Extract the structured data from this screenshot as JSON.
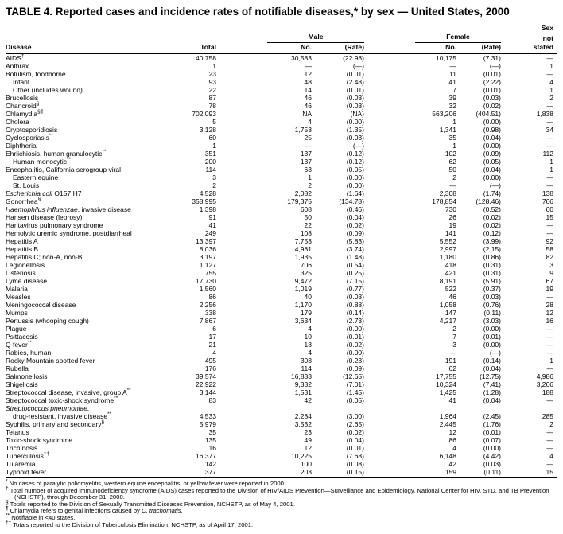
{
  "title": "TABLE 4. Reported cases and incidence rates of notifiable diseases,* by sex — United States, 2000",
  "table": {
    "col_headers": {
      "disease": "Disease",
      "total": "Total",
      "male": "Male",
      "female": "Female",
      "no": "No.",
      "rate": "(Rate)",
      "sex": "Sex",
      "not": "not",
      "stated": "stated"
    },
    "rows": [
      {
        "italic": "",
        "name": "AIDS",
        "sup": "†",
        "indent": 0,
        "total": "40,758",
        "male_no": "30,583",
        "male_rate": "(22.98)",
        "female_no": "10,175",
        "female_rate": "(7.31)",
        "not_stated": "—"
      },
      {
        "italic": "",
        "name": "Anthrax",
        "sup": "",
        "indent": 0,
        "total": "1",
        "male_no": "—",
        "male_rate": "(—)",
        "female_no": "—",
        "female_rate": "(—)",
        "not_stated": "1"
      },
      {
        "italic": "",
        "name": "Botulism, foodborne",
        "sup": "",
        "indent": 0,
        "total": "23",
        "male_no": "12",
        "male_rate": "(0.01)",
        "female_no": "11",
        "female_rate": "(0.01)",
        "not_stated": "—"
      },
      {
        "italic": "",
        "name": "Infant",
        "sup": "",
        "indent": 1,
        "total": "93",
        "male_no": "48",
        "male_rate": "(2.48)",
        "female_no": "41",
        "female_rate": "(2.22)",
        "not_stated": "4"
      },
      {
        "italic": "",
        "name": "Other (includes wound)",
        "sup": "",
        "indent": 1,
        "total": "22",
        "male_no": "14",
        "male_rate": "(0.01)",
        "female_no": "7",
        "female_rate": "(0.01)",
        "not_stated": "1"
      },
      {
        "italic": "",
        "name": "Brucellosis",
        "sup": "",
        "indent": 0,
        "total": "87",
        "male_no": "46",
        "male_rate": "(0.03)",
        "female_no": "39",
        "female_rate": "(0.03)",
        "not_stated": "2"
      },
      {
        "italic": "",
        "name": "Chancroid",
        "sup": "§",
        "indent": 0,
        "total": "78",
        "male_no": "46",
        "male_rate": "(0.03)",
        "female_no": "32",
        "female_rate": "(0.02)",
        "not_stated": "—"
      },
      {
        "italic": "",
        "name": "Chlamydia",
        "sup": "§¶",
        "indent": 0,
        "total": "702,093",
        "male_no": "NA",
        "male_rate": "(NA)",
        "female_no": "563,206",
        "female_rate": "(404.51)",
        "not_stated": "1,838"
      },
      {
        "italic": "",
        "name": "Cholera",
        "sup": "",
        "indent": 0,
        "total": "5",
        "male_no": "4",
        "male_rate": "(0.00)",
        "female_no": "1",
        "female_rate": "(0.00)",
        "not_stated": "—"
      },
      {
        "italic": "",
        "name": "Cryptosporidiosis",
        "sup": "",
        "indent": 0,
        "total": "3,128",
        "male_no": "1,753",
        "male_rate": "(1.35)",
        "female_no": "1,341",
        "female_rate": "(0.98)",
        "not_stated": "34"
      },
      {
        "italic": "",
        "name": "Cyclosporiasis",
        "sup": "**",
        "indent": 0,
        "total": "60",
        "male_no": "25",
        "male_rate": "(0.03)",
        "female_no": "35",
        "female_rate": "(0.04)",
        "not_stated": "—"
      },
      {
        "italic": "",
        "name": "Diphtheria",
        "sup": "",
        "indent": 0,
        "total": "1",
        "male_no": "—",
        "male_rate": "(—)",
        "female_no": "1",
        "female_rate": "(0.00)",
        "not_stated": "—"
      },
      {
        "italic": "",
        "name": "Ehrlichiosis, human granulocytic",
        "sup": "**",
        "indent": 0,
        "total": "351",
        "male_no": "137",
        "male_rate": "(0.12)",
        "female_no": "102",
        "female_rate": "(0.09)",
        "not_stated": "112"
      },
      {
        "italic": "",
        "name": "Human monocytic",
        "sup": "**",
        "indent": 1,
        "total": "200",
        "male_no": "137",
        "male_rate": "(0.12)",
        "female_no": "62",
        "female_rate": "(0.05)",
        "not_stated": "1"
      },
      {
        "italic": "",
        "name": "Encephalitis, California serogroup viral",
        "sup": "",
        "indent": 0,
        "total": "114",
        "male_no": "63",
        "male_rate": "(0.05)",
        "female_no": "50",
        "female_rate": "(0.04)",
        "not_stated": "1"
      },
      {
        "italic": "",
        "name": "Eastern equine",
        "sup": "",
        "indent": 1,
        "total": "3",
        "male_no": "1",
        "male_rate": "(0.00)",
        "female_no": "2",
        "female_rate": "(0.00)",
        "not_stated": "—"
      },
      {
        "italic": "",
        "name": "St. Louis",
        "sup": "",
        "indent": 1,
        "total": "2",
        "male_no": "2",
        "male_rate": "(0.00)",
        "female_no": "—",
        "female_rate": "(—)",
        "not_stated": "—"
      },
      {
        "italic": "Escherichia coli",
        "name": " O157:H7",
        "sup": "",
        "indent": 0,
        "total": "4,528",
        "male_no": "2,082",
        "male_rate": "(1.64)",
        "female_no": "2,308",
        "female_rate": "(1.74)",
        "not_stated": "138"
      },
      {
        "italic": "",
        "name": "Gonorrhea",
        "sup": "§",
        "indent": 0,
        "total": "358,995",
        "male_no": "179,375",
        "male_rate": "(134.78)",
        "female_no": "178,854",
        "female_rate": "(128.46)",
        "not_stated": "766"
      },
      {
        "italic": "Haemophilus influenzae",
        "name": ", invasive disease",
        "sup": "",
        "indent": 0,
        "total": "1,398",
        "male_no": "608",
        "male_rate": "(0.46)",
        "female_no": "730",
        "female_rate": "(0.52)",
        "not_stated": "60"
      },
      {
        "italic": "",
        "name": "Hansen disease (leprosy)",
        "sup": "",
        "indent": 0,
        "total": "91",
        "male_no": "50",
        "male_rate": "(0.04)",
        "female_no": "26",
        "female_rate": "(0.02)",
        "not_stated": "15"
      },
      {
        "italic": "",
        "name": "Hantavirus pulmonary syndrome",
        "sup": "",
        "indent": 0,
        "total": "41",
        "male_no": "22",
        "male_rate": "(0.02)",
        "female_no": "19",
        "female_rate": "(0.02)",
        "not_stated": "—"
      },
      {
        "italic": "",
        "name": "Hemolytic uremic syndrome, postdiarrheal",
        "sup": "",
        "indent": 0,
        "total": "249",
        "male_no": "108",
        "male_rate": "(0.09)",
        "female_no": "141",
        "female_rate": "(0.12)",
        "not_stated": "—"
      },
      {
        "italic": "",
        "name": "Hepatitis A",
        "sup": "",
        "indent": 0,
        "total": "13,397",
        "male_no": "7,753",
        "male_rate": "(5.83)",
        "female_no": "5,552",
        "female_rate": "(3.99)",
        "not_stated": "92"
      },
      {
        "italic": "",
        "name": "Hepatitis B",
        "sup": "",
        "indent": 0,
        "total": "8,036",
        "male_no": "4,981",
        "male_rate": "(3.74)",
        "female_no": "2,997",
        "female_rate": "(2.15)",
        "not_stated": "58"
      },
      {
        "italic": "",
        "name": "Hepatitis C; non-A, non-B",
        "sup": "",
        "indent": 0,
        "total": "3,197",
        "male_no": "1,935",
        "male_rate": "(1.48)",
        "female_no": "1,180",
        "female_rate": "(0.86)",
        "not_stated": "82"
      },
      {
        "italic": "",
        "name": "Legionellosis",
        "sup": "",
        "indent": 0,
        "total": "1,127",
        "male_no": "706",
        "male_rate": "(0.54)",
        "female_no": "418",
        "female_rate": "(0.31)",
        "not_stated": "3"
      },
      {
        "italic": "",
        "name": "Listeriosis",
        "sup": "",
        "indent": 0,
        "total": "755",
        "male_no": "325",
        "male_rate": "(0.25)",
        "female_no": "421",
        "female_rate": "(0.31)",
        "not_stated": "9"
      },
      {
        "italic": "",
        "name": "Lyme disease",
        "sup": "",
        "indent": 0,
        "total": "17,730",
        "male_no": "9,472",
        "male_rate": "(7.15)",
        "female_no": "8,191",
        "female_rate": "(5.91)",
        "not_stated": "67"
      },
      {
        "italic": "",
        "name": "Malaria",
        "sup": "",
        "indent": 0,
        "total": "1,560",
        "male_no": "1,019",
        "male_rate": "(0.77)",
        "female_no": "522",
        "female_rate": "(0.37)",
        "not_stated": "19"
      },
      {
        "italic": "",
        "name": "Measles",
        "sup": "",
        "indent": 0,
        "total": "86",
        "male_no": "40",
        "male_rate": "(0.03)",
        "female_no": "46",
        "female_rate": "(0.03)",
        "not_stated": "—"
      },
      {
        "italic": "",
        "name": "Meningococcal disease",
        "sup": "",
        "indent": 0,
        "total": "2,256",
        "male_no": "1,170",
        "male_rate": "(0.88)",
        "female_no": "1,058",
        "female_rate": "(0.76)",
        "not_stated": "28"
      },
      {
        "italic": "",
        "name": "Mumps",
        "sup": "",
        "indent": 0,
        "total": "338",
        "male_no": "179",
        "male_rate": "(0.14)",
        "female_no": "147",
        "female_rate": "(0.11)",
        "not_stated": "12"
      },
      {
        "italic": "",
        "name": "Pertussis (whooping cough)",
        "sup": "",
        "indent": 0,
        "total": "7,867",
        "male_no": "3,634",
        "male_rate": "(2.73)",
        "female_no": "4,217",
        "female_rate": "(3.03)",
        "not_stated": "16"
      },
      {
        "italic": "",
        "name": "Plague",
        "sup": "",
        "indent": 0,
        "total": "6",
        "male_no": "4",
        "male_rate": "(0.00)",
        "female_no": "2",
        "female_rate": "(0.00)",
        "not_stated": "—"
      },
      {
        "italic": "",
        "name": "Psittacosis",
        "sup": "",
        "indent": 0,
        "total": "17",
        "male_no": "10",
        "male_rate": "(0.01)",
        "female_no": "7",
        "female_rate": "(0.01)",
        "not_stated": "—"
      },
      {
        "italic": "",
        "name": "Q fever",
        "sup": "**",
        "indent": 0,
        "total": "21",
        "male_no": "18",
        "male_rate": "(0.02)",
        "female_no": "3",
        "female_rate": "(0.00)",
        "not_stated": "—"
      },
      {
        "italic": "",
        "name": "Rabies, human",
        "sup": "",
        "indent": 0,
        "total": "4",
        "male_no": "4",
        "male_rate": "(0.00)",
        "female_no": "—",
        "female_rate": "(—)",
        "not_stated": "—"
      },
      {
        "italic": "",
        "name": "Rocky Mountain spotted fever",
        "sup": "",
        "indent": 0,
        "total": "495",
        "male_no": "303",
        "male_rate": "(0.23)",
        "female_no": "191",
        "female_rate": "(0.14)",
        "not_stated": "1"
      },
      {
        "italic": "",
        "name": "Rubella",
        "sup": "",
        "indent": 0,
        "total": "176",
        "male_no": "114",
        "male_rate": "(0.09)",
        "female_no": "62",
        "female_rate": "(0.04)",
        "not_stated": "—"
      },
      {
        "italic": "",
        "name": "Salmonellosis",
        "sup": "",
        "indent": 0,
        "total": "39,574",
        "male_no": "16,833",
        "male_rate": "(12.65)",
        "female_no": "17,755",
        "female_rate": "(12.75)",
        "not_stated": "4,986"
      },
      {
        "italic": "",
        "name": "Shigellosis",
        "sup": "",
        "indent": 0,
        "total": "22,922",
        "male_no": "9,332",
        "male_rate": "(7.01)",
        "female_no": "10,324",
        "female_rate": "(7.41)",
        "not_stated": "3,266"
      },
      {
        "italic": "",
        "name": "Streptococcal disease, invasive, group A",
        "sup": "**",
        "indent": 0,
        "total": "3,144",
        "male_no": "1,531",
        "male_rate": "(1.45)",
        "female_no": "1,425",
        "female_rate": "(1.28)",
        "not_stated": "188"
      },
      {
        "italic": "",
        "name": "Streptococcal toxic-shock syndrome",
        "sup": "**",
        "indent": 0,
        "total": "83",
        "male_no": "42",
        "male_rate": "(0.05)",
        "female_no": "41",
        "female_rate": "(0.04)",
        "not_stated": "—"
      },
      {
        "italic": "Streptococcus pneumoniae,",
        "name": "",
        "sup": "",
        "indent": 0,
        "total": "",
        "male_no": "",
        "male_rate": "",
        "female_no": "",
        "female_rate": "",
        "not_stated": ""
      },
      {
        "italic": "",
        "name": "drug-resistant, invasive disease",
        "sup": "**",
        "indent": 1,
        "total": "4,533",
        "male_no": "2,284",
        "male_rate": "(3.00)",
        "female_no": "1,964",
        "female_rate": "(2.45)",
        "not_stated": "285"
      },
      {
        "italic": "",
        "name": "Syphilis, primary and secondary",
        "sup": "§",
        "indent": 0,
        "total": "5,979",
        "male_no": "3,532",
        "male_rate": "(2.65)",
        "female_no": "2,445",
        "female_rate": "(1.76)",
        "not_stated": "2"
      },
      {
        "italic": "",
        "name": "Tetanus",
        "sup": "",
        "indent": 0,
        "total": "35",
        "male_no": "23",
        "male_rate": "(0.02)",
        "female_no": "12",
        "female_rate": "(0.01)",
        "not_stated": "—"
      },
      {
        "italic": "",
        "name": "Toxic-shock syndrome",
        "sup": "",
        "indent": 0,
        "total": "135",
        "male_no": "49",
        "male_rate": "(0.04)",
        "female_no": "86",
        "female_rate": "(0.07)",
        "not_stated": "—"
      },
      {
        "italic": "",
        "name": "Trichinosis",
        "sup": "",
        "indent": 0,
        "total": "16",
        "male_no": "12",
        "male_rate": "(0.01)",
        "female_no": "4",
        "female_rate": "(0.00)",
        "not_stated": "—"
      },
      {
        "italic": "",
        "name": "Tuberculosis",
        "sup": "††",
        "indent": 0,
        "total": "16,377",
        "male_no": "10,225",
        "male_rate": "(7.68)",
        "female_no": "6,148",
        "female_rate": "(4.42)",
        "not_stated": "4"
      },
      {
        "italic": "",
        "name": "Tularemia",
        "sup": "",
        "indent": 0,
        "total": "142",
        "male_no": "100",
        "male_rate": "(0.08)",
        "female_no": "42",
        "female_rate": "(0.03)",
        "not_stated": "—"
      },
      {
        "italic": "",
        "name": "Typhoid fever",
        "sup": "",
        "indent": 0,
        "total": "377",
        "male_no": "203",
        "male_rate": "(0.15)",
        "female_no": "159",
        "female_rate": "(0.11)",
        "not_stated": "15"
      }
    ]
  },
  "footnotes": [
    {
      "marker": "*",
      "text": "No cases of paralytic poliomyelitis, western equine encephalitis, or yellow fever were reported in 2000.",
      "italic": ""
    },
    {
      "marker": "†",
      "text": "Total number of acquired immunodeficiency syndrome (AIDS) cases reported to the Division of HIV/AIDS Prevention—Surveillance and Epidemiology, National Center for HIV, STD, and TB Prevention (NCHSTP), through December 31, 2000.",
      "italic": ""
    },
    {
      "marker": "§",
      "text": "Totals reported to the Division of Sexually Transmitted Diseases Prevention, NCHSTP, as of May 4, 2001.",
      "italic": ""
    },
    {
      "marker": "¶",
      "text": "Chlamydia refers to genital infections caused by ",
      "italic": "C. trachomatis."
    },
    {
      "marker": "**",
      "text": "Notifiable in <40 states.",
      "italic": ""
    },
    {
      "marker": "††",
      "text": "Totals reported to the Division of Tuberculosis Elimination, NCHSTP, as of April 17, 2001.",
      "italic": ""
    }
  ]
}
